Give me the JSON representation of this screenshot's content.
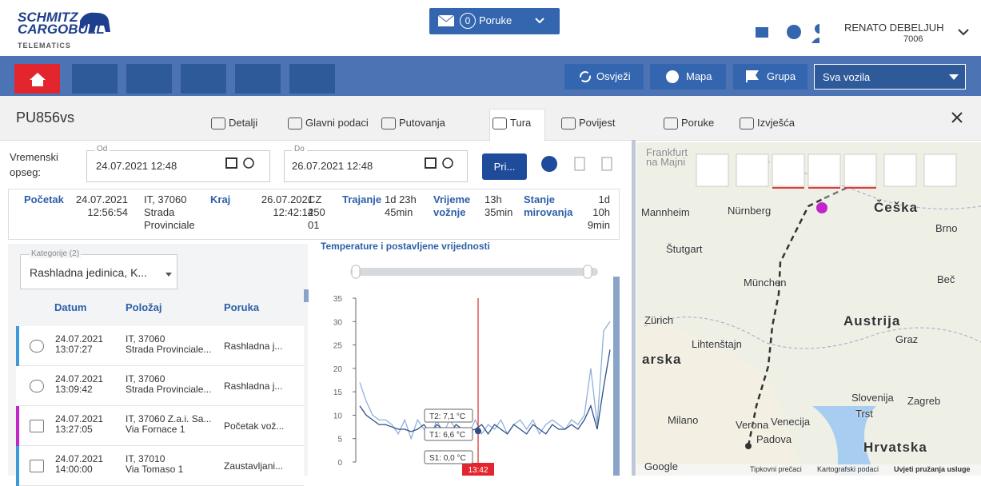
{
  "header": {
    "logo_top": "SCHMITZ",
    "logo_bottom": "CARGOBULL",
    "logo_sub": "TELEMATICS",
    "messages_count": "0",
    "messages_label": "Poruke",
    "user_name": "RENATO DEBELJUH",
    "user_id": "7006"
  },
  "toolbar": {
    "refresh": "Osvježi",
    "map": "Mapa",
    "group": "Grupa",
    "vehicle_filter": "Sva vozila"
  },
  "vehicle": "PU856vs",
  "tabs": [
    "Detalji",
    "Glavni podaci",
    "Putovanja",
    "Tura",
    "Povijest",
    "Poruke",
    "Izvješća"
  ],
  "active_tab": 3,
  "filter": {
    "range_label": "Vremenski opseg:",
    "from_label": "Od",
    "from": "24.07.2021 12:48",
    "to_label": "Do",
    "to": "26.07.2021 12:48",
    "apply": "Pri..."
  },
  "summary": {
    "start_label": "Početak",
    "start": "24.07.2021 12:56:54",
    "start_place": "IT, 37060 Strada Provinciale",
    "end_label": "Kraj",
    "end": "26.07.2021 12:42:14",
    "end_place": "CZ 250 01",
    "duration_label": "Trajanje",
    "duration": "1d 23h 45min",
    "driving_label": "Vrijeme vožnje",
    "driving": "13h 35min",
    "idle_label": "Stanje mirovanja",
    "idle": "1d 10h 9min"
  },
  "category_filter": {
    "label": "Kategorije (2)",
    "value": "Rashladna jedinica, K..."
  },
  "table": {
    "headers": [
      "Datum",
      "Položaj",
      "Poruka"
    ],
    "rows": [
      {
        "date": "24.07.2021",
        "time": "13:07:27",
        "place1": "IT, 37060",
        "place2": "Strada Provinciale...",
        "message": "Rashladna j...",
        "color": "#3b9ad9"
      },
      {
        "date": "24.07.2021",
        "time": "13:09:42",
        "place1": "IT, 37060",
        "place2": "Strada Provinciale...",
        "message": "Rashladna j...",
        "color": "#ffffff"
      },
      {
        "date": "24.07.2021",
        "time": "13:27:05",
        "place1": "IT, 37060 Z.a.i. Sa...",
        "place2": "Via Fornace 1",
        "message": "Početak vož...",
        "color": "#c026c9"
      },
      {
        "date": "24.07.2021",
        "time": "14:00:00",
        "place1": "IT, 37010",
        "place2": "Via Tomaso 1",
        "message": "Zaustavljani...",
        "color": "#3b9ad9"
      }
    ]
  },
  "chart_data": {
    "type": "line",
    "title": "Temperature i postavljene vrijednosti",
    "ylim": [
      0,
      35
    ],
    "yticks": [
      0,
      5,
      10,
      15,
      20,
      25,
      30,
      35
    ],
    "series": [
      {
        "color": "#8fb0dc",
        "values": [
          17,
          13,
          10,
          9,
          9,
          8,
          6,
          9,
          5,
          9,
          7,
          5,
          9,
          6,
          9,
          7,
          7.1,
          6,
          9,
          6,
          8,
          7,
          9,
          6,
          8,
          9,
          7,
          9,
          6,
          8,
          9,
          8,
          7,
          9,
          8,
          10,
          20,
          8,
          28,
          30
        ]
      },
      {
        "color": "#2c4f86",
        "values": [
          12,
          10,
          9,
          8,
          8,
          7.5,
          7,
          7,
          6.5,
          7,
          8,
          6,
          8,
          7,
          6,
          8,
          7,
          6.6,
          7,
          8,
          6,
          8,
          7,
          6,
          8,
          7,
          6,
          8,
          7,
          6,
          8,
          7,
          7,
          8,
          7,
          9,
          12,
          7,
          16,
          24
        ]
      }
    ],
    "tooltips": [
      "T2: 7,1 °C",
      "T1: 6,6 °C",
      "S1: 0,0 °C"
    ],
    "cursor_label": "13:42"
  },
  "map": {
    "labels": [
      "Frankfurt na Majni",
      "Mannheim",
      "Nürnberg",
      "Češka",
      "Brno",
      "Štutgart",
      "München",
      "Beč",
      "Zürich",
      "Austrija",
      "Lihtenštajn",
      "Graz",
      "arska",
      "Slovenija",
      "Zagreb",
      "Trst",
      "Milano",
      "Verona",
      "Venecija",
      "Padova",
      "Hrvatska",
      "Google"
    ],
    "footer": [
      "Tipkovni prečaci",
      "Kartografski podaci",
      "Uvjeti pružanja usluge"
    ]
  }
}
